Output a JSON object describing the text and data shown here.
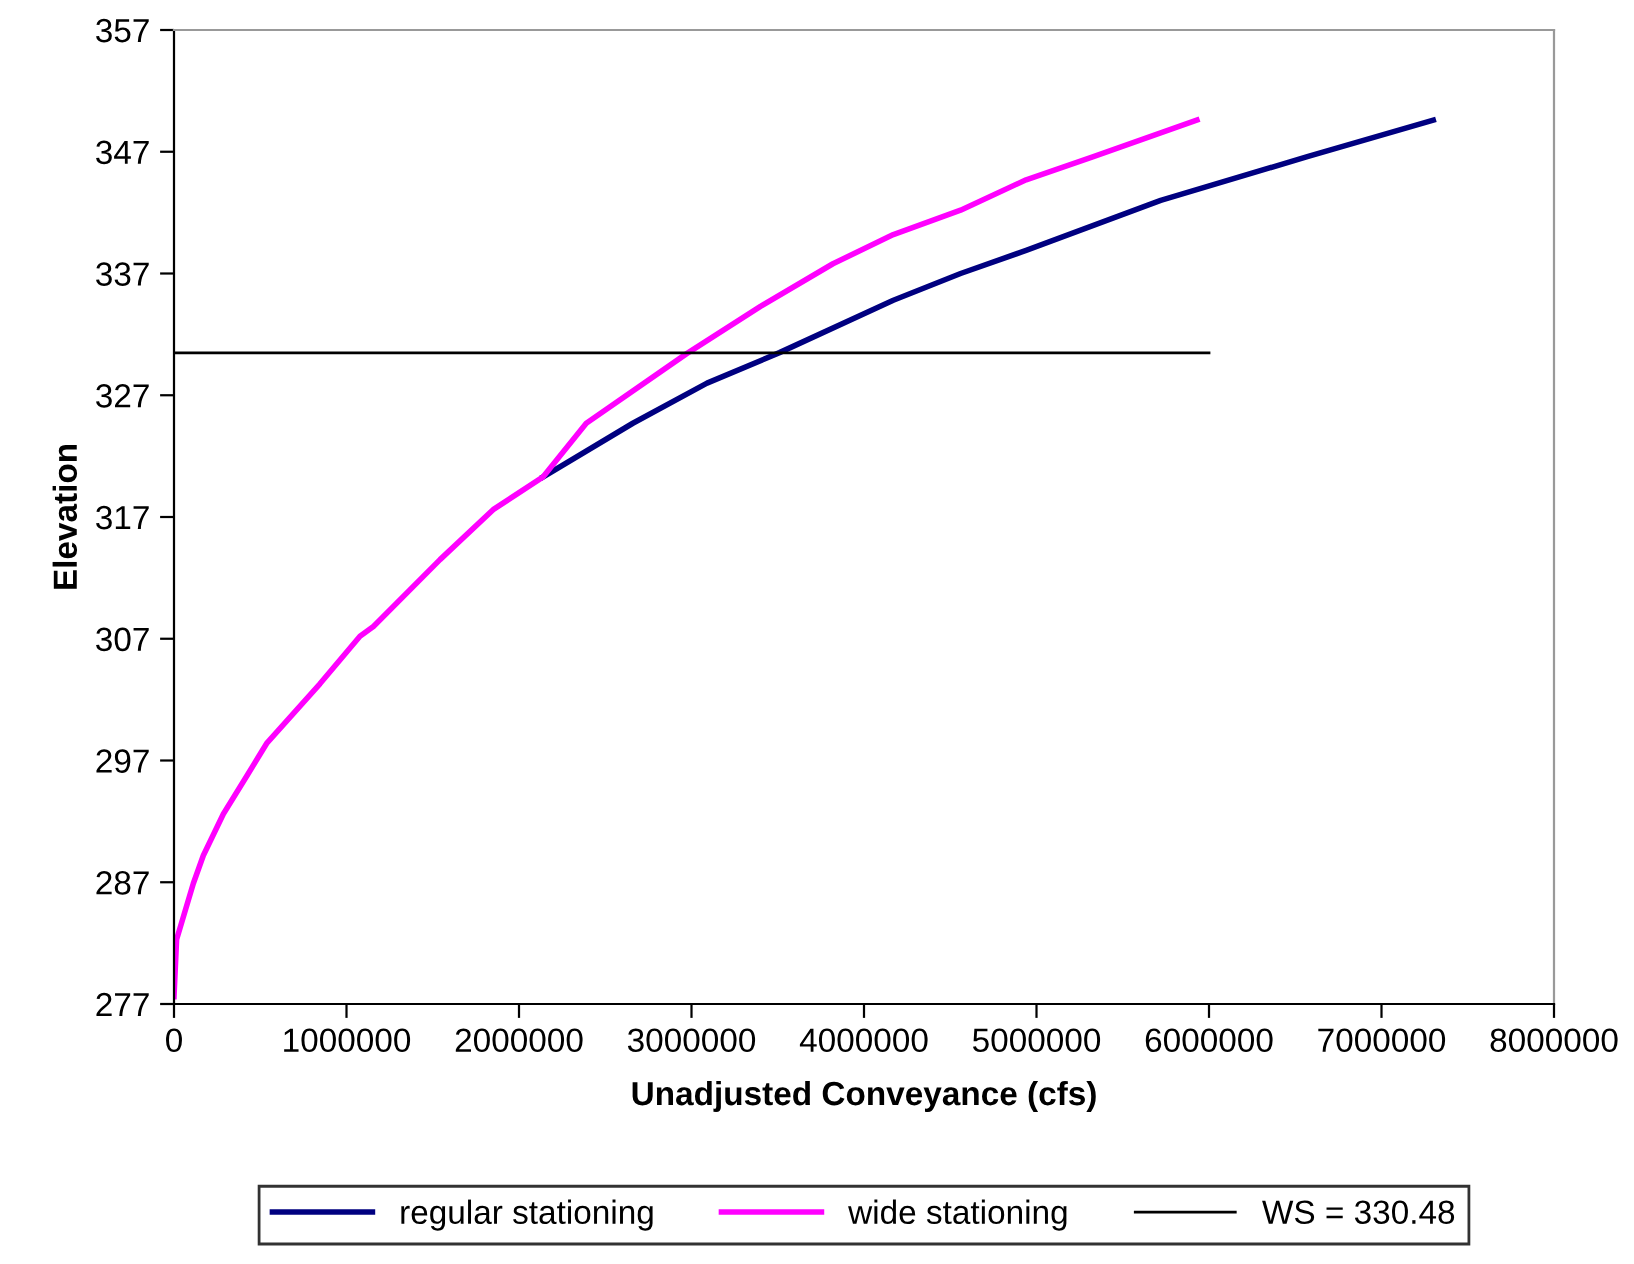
{
  "chart_data": {
    "type": "line",
    "xlabel": "Unadjusted Conveyance (cfs)",
    "ylabel": "Elevation",
    "xlim": [
      0,
      8000000
    ],
    "xticks": [
      0,
      1000000,
      2000000,
      3000000,
      4000000,
      5000000,
      6000000,
      7000000,
      8000000
    ],
    "ylim": [
      277,
      357
    ],
    "yticks": [
      277,
      287,
      297,
      307,
      317,
      327,
      337,
      347,
      357
    ],
    "grid": false,
    "legend": "bottom",
    "marker": "none",
    "line_style": "solid",
    "series": [
      {
        "name": "regular stationing",
        "color": "#000080",
        "x": [
          2140000,
          2660000,
          3090000,
          3510000,
          4170000,
          4560000,
          4940000,
          5720000,
          6570000,
          7300000
        ],
        "values": [
          320.3,
          324.7,
          328.0,
          330.5,
          334.8,
          337.0,
          338.9,
          343.0,
          346.6,
          349.6
        ]
      },
      {
        "name": "wide stationing",
        "color": "#ff00ff",
        "x": [
          0,
          15000,
          112000,
          170000,
          286000,
          421000,
          537000,
          846000,
          1078000,
          1156000,
          1542000,
          1850000,
          2140000,
          2390000,
          2970000,
          3400000,
          3820000,
          4170000,
          4560000,
          4940000,
          5330000,
          5930000
        ],
        "values": [
          277.6,
          282.3,
          286.9,
          289.2,
          292.6,
          295.7,
          298.4,
          303.3,
          307.2,
          308.0,
          313.5,
          317.6,
          320.3,
          324.7,
          330.4,
          334.3,
          337.8,
          340.2,
          342.2,
          344.7,
          346.6,
          349.6
        ]
      },
      {
        "name": "WS = 330.48",
        "color": "#000000",
        "x": [
          0,
          6000000
        ],
        "values": [
          330.48,
          330.48
        ]
      }
    ]
  }
}
